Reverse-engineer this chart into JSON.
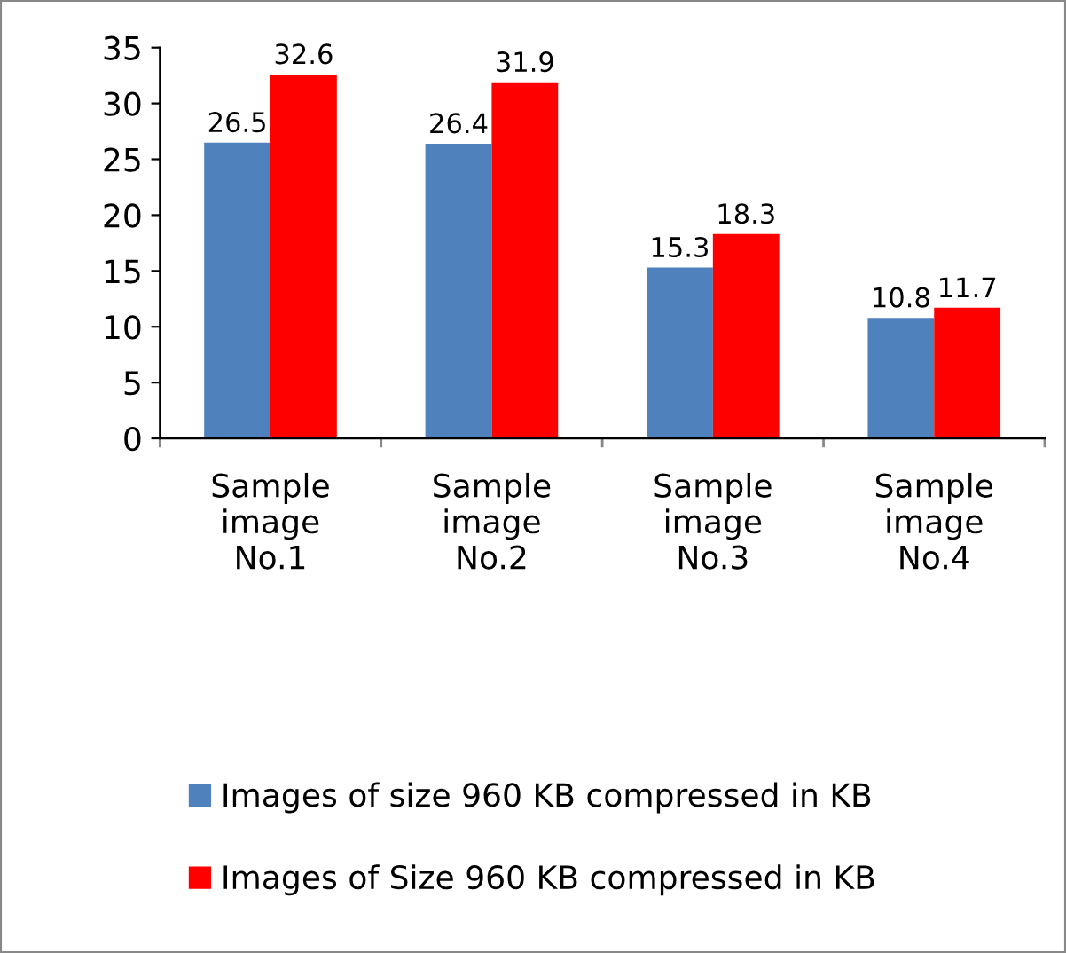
{
  "chart_data": {
    "type": "bar",
    "categories": [
      "Sample\nimage\nNo.1",
      "Sample\nimage\nNo.2",
      "Sample\nimage\nNo.3",
      "Sample\nimage\nNo.4"
    ],
    "series": [
      {
        "name": "Images of size 960 KB compressed in KB",
        "color": "#4f81bd",
        "values": [
          26.5,
          26.4,
          15.3,
          10.8
        ]
      },
      {
        "name": "Images of Size 960 KB compressed in KB",
        "color": "#ff0000",
        "values": [
          32.6,
          31.9,
          18.3,
          11.7
        ]
      }
    ],
    "ylim": [
      0,
      35
    ],
    "yticks": [
      0,
      5,
      10,
      15,
      20,
      25,
      30,
      35
    ],
    "data_labels": true,
    "grid": false,
    "legend": "bottom"
  }
}
